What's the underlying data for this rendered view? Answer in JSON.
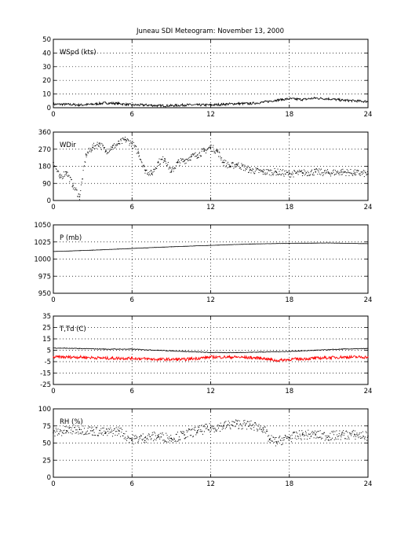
{
  "chart_data": [
    {
      "type": "line",
      "title": "Juneau SDI Meteogram:  November 13, 2000",
      "label": "WSpd (kts)",
      "xlim": [
        0,
        24
      ],
      "ylim": [
        0,
        50
      ],
      "xticks": [
        0,
        6,
        12,
        18,
        24
      ],
      "yticks": [
        0,
        10,
        20,
        30,
        40,
        50
      ],
      "grid": true,
      "series": [
        {
          "color": "#000000",
          "x": [
            0,
            1,
            2,
            3,
            4,
            5,
            6,
            7,
            8,
            9,
            10,
            11,
            12,
            13,
            14,
            15,
            16,
            17,
            18,
            19,
            20,
            21,
            22,
            23,
            24
          ],
          "values": [
            2.5,
            2.5,
            2,
            2.5,
            3.5,
            3,
            2,
            2,
            1.5,
            1.5,
            2,
            2,
            2,
            2.5,
            3,
            3,
            4,
            5.5,
            6.5,
            6,
            7,
            6.5,
            5.5,
            5,
            4.5
          ]
        }
      ]
    },
    {
      "type": "scatter",
      "label": "WDir",
      "xlim": [
        0,
        24
      ],
      "ylim": [
        0,
        360
      ],
      "xticks": [
        0,
        6,
        12,
        18,
        24
      ],
      "yticks": [
        0,
        90,
        180,
        270,
        360
      ],
      "grid": true,
      "series": [
        {
          "color": "#000000",
          "x": [
            0,
            0.5,
            1,
            1.5,
            2,
            2.5,
            3,
            3.5,
            4,
            4.5,
            5,
            5.5,
            6,
            6.5,
            7,
            7.5,
            8,
            8.5,
            9,
            9.5,
            10,
            10.5,
            11,
            11.5,
            12,
            12.5,
            13,
            13.5,
            14,
            15,
            16,
            17,
            18,
            19,
            20,
            21,
            22,
            23,
            24
          ],
          "values": [
            200,
            120,
            150,
            80,
            20,
            240,
            280,
            300,
            260,
            280,
            300,
            320,
            300,
            250,
            160,
            140,
            200,
            220,
            150,
            200,
            210,
            230,
            240,
            260,
            280,
            260,
            200,
            180,
            190,
            160,
            150,
            150,
            140,
            145,
            150,
            145,
            150,
            145,
            140
          ]
        }
      ]
    },
    {
      "type": "line",
      "label": "P (mb)",
      "xlim": [
        0,
        24
      ],
      "ylim": [
        950,
        1050
      ],
      "xticks": [
        0,
        6,
        12,
        18,
        24
      ],
      "yticks": [
        950,
        975,
        1000,
        1025,
        1050
      ],
      "grid": true,
      "series": [
        {
          "color": "#000000",
          "x": [
            0,
            3,
            6,
            9,
            12,
            15,
            18,
            21,
            24
          ],
          "values": [
            1011,
            1013,
            1015.5,
            1018,
            1020,
            1022,
            1023,
            1023.5,
            1022.5
          ]
        }
      ]
    },
    {
      "type": "line",
      "label": "T,Td (C)",
      "xlim": [
        0,
        24
      ],
      "ylim": [
        -25,
        35
      ],
      "xticks": [
        0,
        6,
        12,
        18,
        24
      ],
      "yticks": [
        -25,
        -15,
        -5,
        5,
        15,
        25,
        35
      ],
      "grid": true,
      "series": [
        {
          "color": "#000000",
          "x": [
            0,
            2,
            4,
            6,
            8,
            10,
            12,
            14,
            16,
            18,
            20,
            22,
            24
          ],
          "values": [
            7,
            6.5,
            6,
            6,
            5,
            4,
            3,
            3,
            3.5,
            4,
            5,
            6,
            6.5
          ]
        },
        {
          "color": "#ff0000",
          "x": [
            0,
            2,
            4,
            6,
            8,
            10,
            12,
            14,
            16,
            17,
            18,
            20,
            22,
            24
          ],
          "values": [
            -1,
            -1,
            -2,
            -2,
            -3,
            -3,
            -1,
            -1,
            -2,
            -4,
            -3,
            -2,
            -1,
            -1
          ]
        }
      ]
    },
    {
      "type": "scatter",
      "label": "RH (%)",
      "xlim": [
        0,
        24
      ],
      "ylim": [
        0,
        100
      ],
      "xticks": [
        0,
        6,
        12,
        18,
        24
      ],
      "yticks": [
        0,
        25,
        50,
        75,
        100
      ],
      "grid": true,
      "series": [
        {
          "color": "#000000",
          "x": [
            0,
            1,
            2,
            3,
            4,
            5,
            6,
            7,
            8,
            9,
            10,
            11,
            12,
            13,
            14,
            15,
            16,
            16.5,
            17,
            18,
            19,
            20,
            21,
            22,
            23,
            24
          ],
          "values": [
            65,
            68,
            70,
            68,
            65,
            68,
            55,
            58,
            60,
            57,
            62,
            68,
            72,
            75,
            78,
            76,
            72,
            55,
            52,
            58,
            62,
            62,
            60,
            62,
            62,
            60
          ]
        }
      ]
    }
  ]
}
